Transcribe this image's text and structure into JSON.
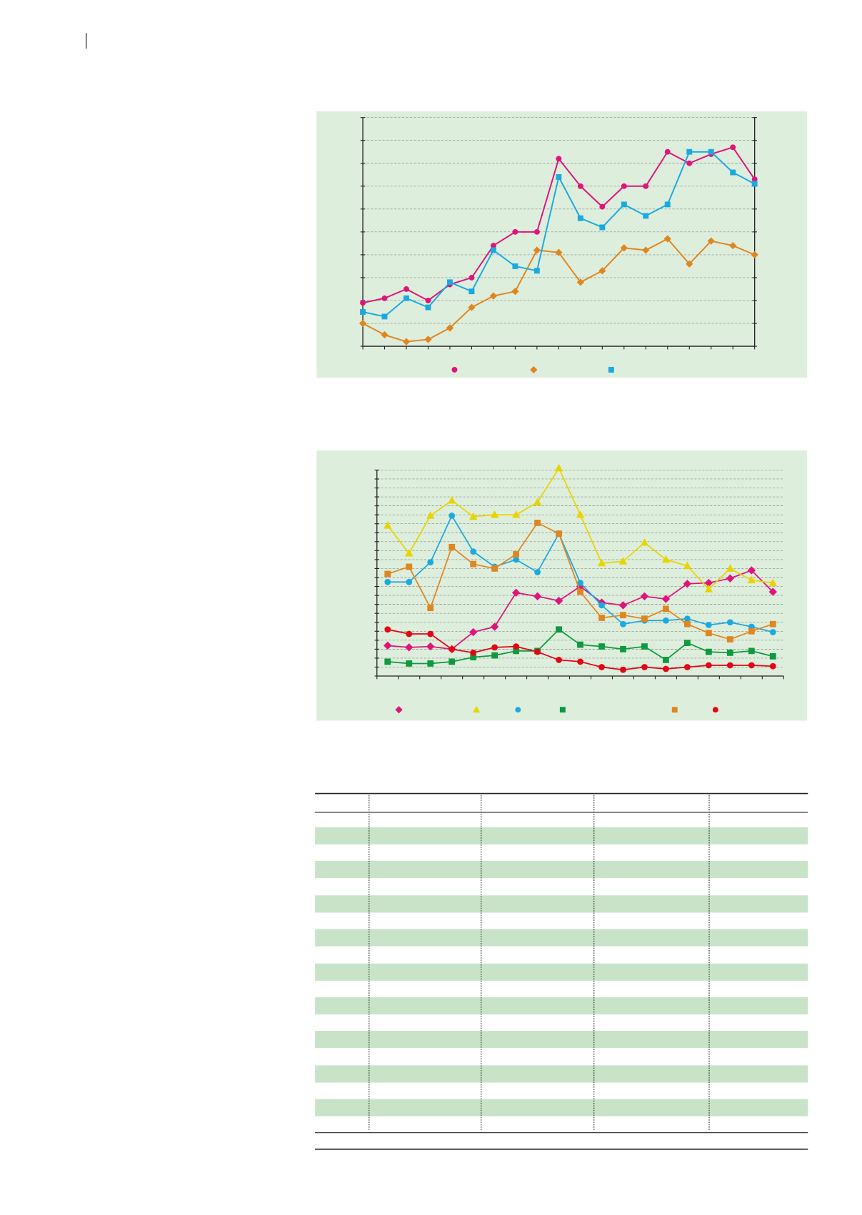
{
  "chart_data": [
    {
      "type": "line",
      "categories": [
        null,
        null,
        null,
        null,
        null,
        null,
        null,
        null,
        null,
        null,
        null,
        null,
        null,
        null,
        null,
        null,
        null,
        null,
        null
      ],
      "ylim": [
        0,
        10
      ],
      "yticks": [
        0,
        1,
        2,
        3,
        4,
        5,
        6,
        7,
        8,
        9,
        10
      ],
      "grid": true,
      "series": [
        {
          "color": "#e0147a",
          "marker": "circle",
          "values": [
            1.9,
            2.1,
            2.5,
            2.0,
            2.7,
            3.0,
            4.4,
            5.0,
            5.0,
            8.2,
            7.0,
            6.1,
            7.0,
            7.0,
            8.5,
            8.0,
            8.4,
            8.7,
            7.3
          ]
        },
        {
          "color": "#e0861e",
          "marker": "diamond",
          "values": [
            1.0,
            0.5,
            0.2,
            0.3,
            0.8,
            1.7,
            2.2,
            2.4,
            4.2,
            4.1,
            2.8,
            3.3,
            4.3,
            4.2,
            4.7,
            3.6,
            4.6,
            4.4,
            4.0
          ]
        },
        {
          "color": "#1ba9e0",
          "marker": "square",
          "values": [
            1.5,
            1.3,
            2.1,
            1.7,
            2.8,
            2.4,
            4.2,
            3.5,
            3.3,
            7.4,
            5.6,
            5.2,
            6.2,
            5.7,
            6.2,
            8.5,
            8.5,
            7.6,
            7.1
          ]
        }
      ]
    },
    {
      "type": "line",
      "categories": [
        null,
        null,
        null,
        null,
        null,
        null,
        null,
        null,
        null,
        null,
        null,
        null,
        null,
        null,
        null,
        null,
        null,
        null,
        null
      ],
      "ylim": [
        0,
        23
      ],
      "yticks": [
        0,
        1,
        2,
        3,
        4,
        5,
        6,
        7,
        8,
        9,
        10,
        11,
        12,
        13,
        14,
        15,
        16,
        17,
        18,
        19,
        20,
        21,
        22,
        23
      ],
      "grid": true,
      "series": [
        {
          "color": "#e0147a",
          "marker": "diamond",
          "values": [
            3.4,
            3.2,
            3.3,
            3.0,
            4.9,
            5.5,
            9.3,
            8.9,
            8.4,
            10.0,
            8.2,
            7.9,
            8.9,
            8.6,
            10.3,
            10.4,
            10.9,
            11.8,
            9.4
          ]
        },
        {
          "color": "#e8d400",
          "marker": "triangle",
          "values": [
            16.8,
            13.7,
            17.9,
            19.6,
            17.8,
            18.0,
            18.0,
            19.4,
            23.2,
            18.0,
            12.6,
            12.8,
            14.9,
            13.0,
            12.3,
            9.7,
            12.0,
            10.7,
            10.4
          ]
        },
        {
          "color": "#1ba9e0",
          "marker": "circle",
          "values": [
            10.5,
            10.5,
            12.7,
            17.9,
            13.9,
            12.2,
            13.0,
            11.6,
            15.9,
            10.4,
            7.9,
            5.8,
            6.2,
            6.2,
            6.4,
            5.7,
            6.0,
            5.5,
            4.9
          ]
        },
        {
          "color": "#0e9a3e",
          "marker": "square",
          "values": [
            1.6,
            1.4,
            1.4,
            1.6,
            2.1,
            2.3,
            2.8,
            2.8,
            5.2,
            3.5,
            3.3,
            3.0,
            3.3,
            1.8,
            3.7,
            2.7,
            2.6,
            2.8,
            2.2
          ]
        },
        {
          "color": "#e0861e",
          "marker": "square",
          "values": [
            11.4,
            12.2,
            7.6,
            14.4,
            12.5,
            12.0,
            13.6,
            17.1,
            15.9,
            9.4,
            6.5,
            6.8,
            6.4,
            7.5,
            5.8,
            4.8,
            4.1,
            5.0,
            5.8
          ]
        },
        {
          "color": "#e30613",
          "marker": "circle",
          "values": [
            5.2,
            4.7,
            4.7,
            3.0,
            2.6,
            3.2,
            3.3,
            2.7,
            1.8,
            1.6,
            1.0,
            0.7,
            1.0,
            0.8,
            1.0,
            1.2,
            1.2,
            1.2,
            1.1
          ]
        }
      ]
    }
  ]
}
